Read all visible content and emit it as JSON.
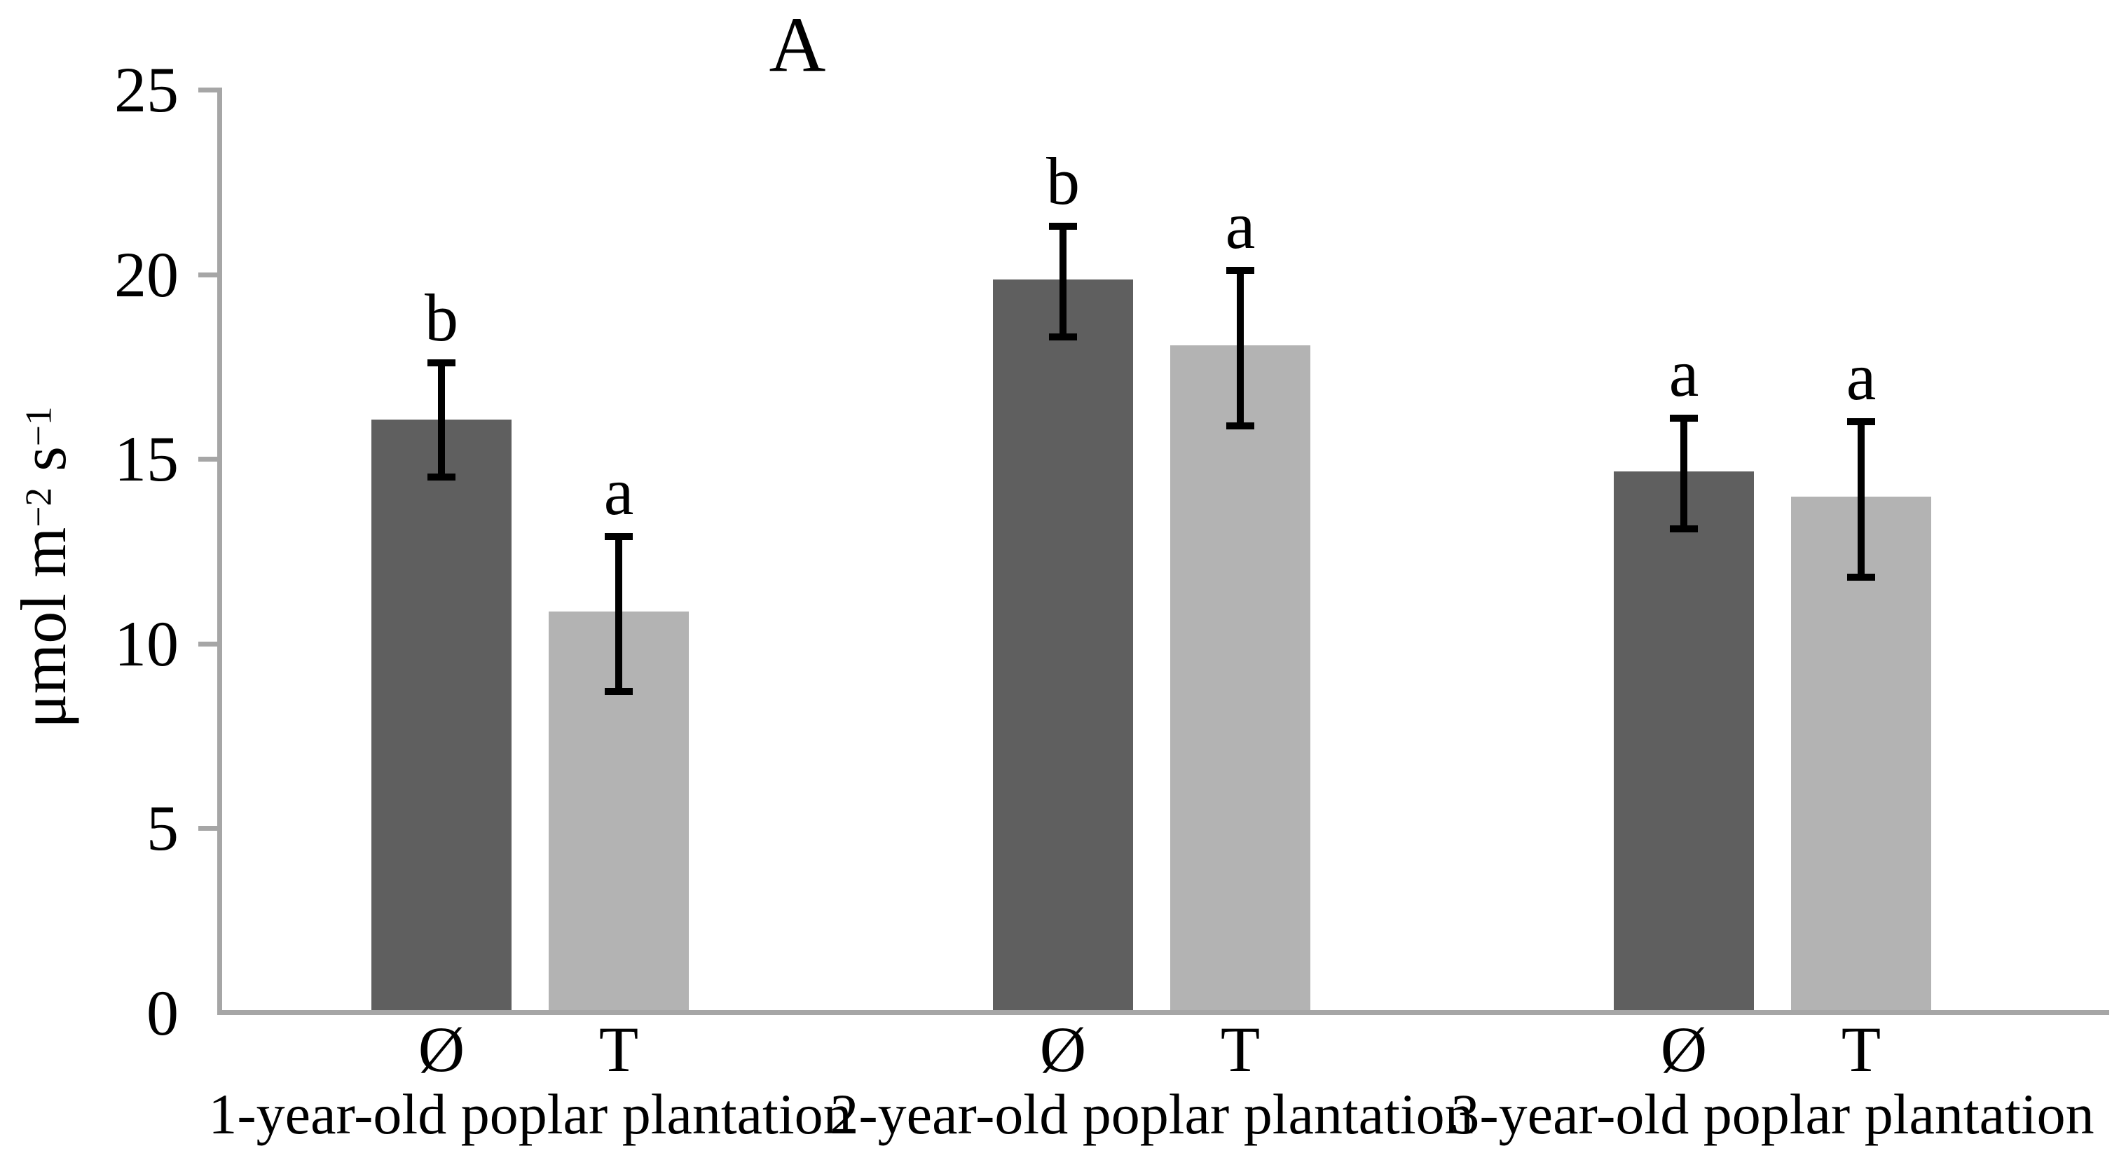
{
  "chart_data": {
    "type": "bar",
    "title": "A",
    "ylabel": "μmol m⁻² s⁻¹",
    "ylabel_parts": [
      {
        "text": "μmol m"
      },
      {
        "text": "−2",
        "sup": true
      },
      {
        "text": " s"
      },
      {
        "text": "−1",
        "sup": true
      }
    ],
    "xlabel": "",
    "ylim": [
      0,
      25
    ],
    "yticks": [
      0,
      5,
      10,
      15,
      20,
      25
    ],
    "grid": false,
    "legend": "none",
    "categories": [
      "1-year-old poplar plantation",
      "2-year-old poplar plantation",
      "3-year-old poplar plantation"
    ],
    "bar_treatment_labels": [
      "Ø",
      "T"
    ],
    "series": [
      {
        "name": "Ø",
        "color": "#5f5f5f",
        "values": [
          16.0,
          19.8,
          14.6
        ],
        "error_low": [
          14.5,
          18.3,
          13.1
        ],
        "error_high": [
          17.6,
          21.3,
          16.1
        ],
        "sig_letters": [
          "b",
          "b",
          "a"
        ]
      },
      {
        "name": "T",
        "color": "#b3b3b3",
        "values": [
          10.8,
          18.0,
          13.9
        ],
        "error_low": [
          8.7,
          15.9,
          11.8
        ],
        "error_high": [
          12.9,
          20.1,
          16.0
        ],
        "sig_letters": [
          "a",
          "a",
          "a"
        ]
      }
    ],
    "colors": {
      "axis": "#a6a6a6",
      "error_bars": "#000000",
      "text": "#000000",
      "background": "#ffffff"
    }
  }
}
